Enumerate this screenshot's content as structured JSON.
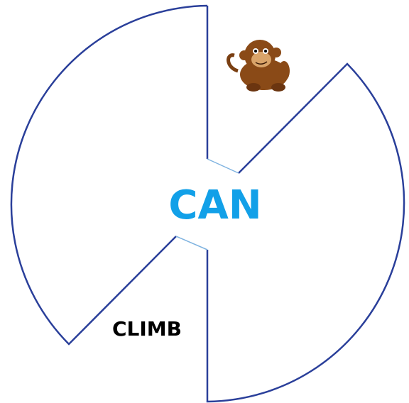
{
  "center": {
    "label": "CAN"
  },
  "segments": [
    {
      "label": "CLIMB"
    }
  ]
}
